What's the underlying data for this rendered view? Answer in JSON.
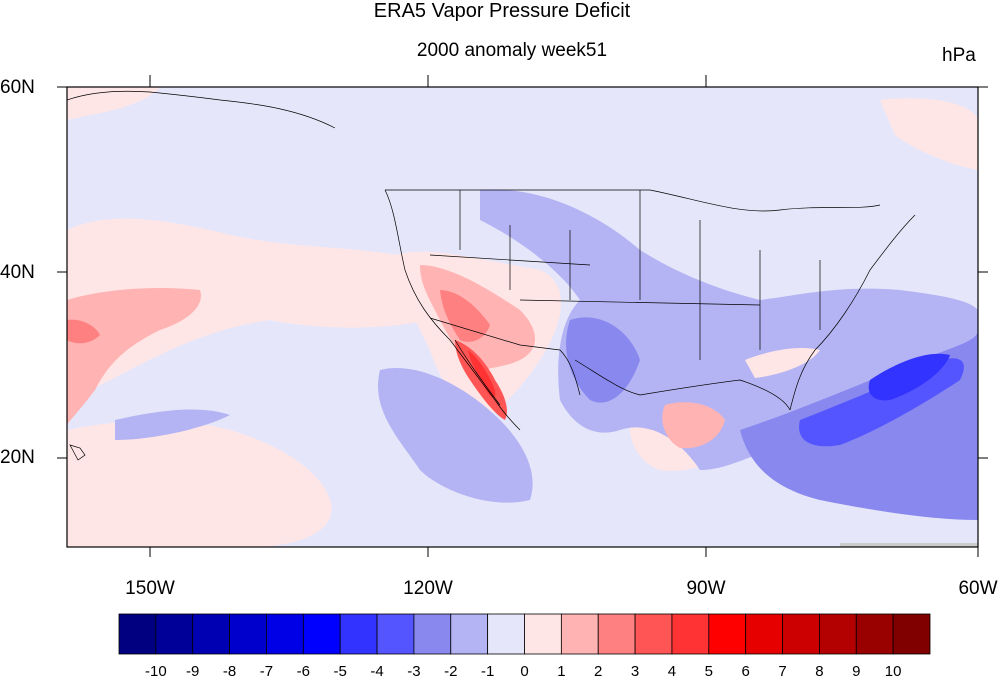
{
  "title": "ERA5 Vapor Pressure Deficit",
  "subtitle": "2000 anomaly week51",
  "units": "hPa",
  "axes": {
    "lat_labels": [
      "60N",
      "40N",
      "20N"
    ],
    "lon_labels": [
      "150W",
      "120W",
      "90W",
      "60W"
    ]
  },
  "map": {
    "lon_range": [
      -160,
      -60
    ],
    "lat_range": [
      10,
      60
    ],
    "background_anomaly": -1
  },
  "colorbar": {
    "labels": [
      "-10",
      "-9",
      "-8",
      "-7",
      "-6",
      "-5",
      "-4",
      "-3",
      "-2",
      "-1",
      "0",
      "1",
      "2",
      "3",
      "4",
      "5",
      "6",
      "7",
      "8",
      "9",
      "10"
    ],
    "colors": [
      "#000080",
      "#000099",
      "#0000b3",
      "#0000cc",
      "#0000e6",
      "#0000ff",
      "#3333ff",
      "#5555ff",
      "#8888ee",
      "#b4b4f4",
      "#e6e6fa",
      "#ffe6e6",
      "#ffb3b3",
      "#ff8080",
      "#ff5555",
      "#ff3333",
      "#ff0000",
      "#e60000",
      "#cc0000",
      "#b30000",
      "#990000",
      "#800000"
    ]
  }
}
